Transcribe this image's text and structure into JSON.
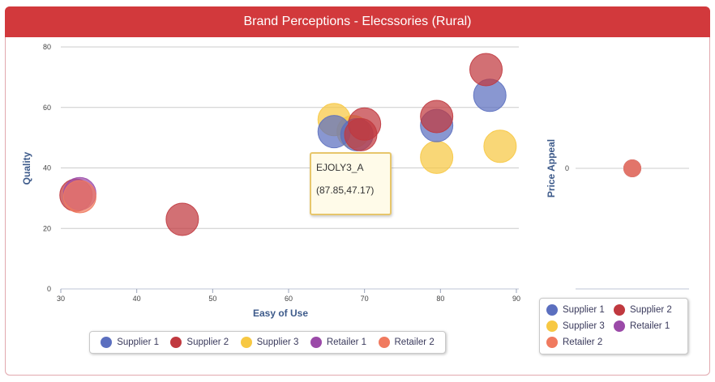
{
  "title": "Brand Perceptions - Elecssories (Rural)",
  "colors": {
    "header": "#d2393c",
    "supplier1": "#5b6fbf",
    "supplier2": "#c0393f",
    "supplier3": "#f7c843",
    "retailer1": "#9b4aa8",
    "retailer2": "#f07a5f"
  },
  "chart_data": [
    {
      "type": "scatter",
      "xlabel": "Easy of Use",
      "ylabel": "Quality",
      "xlim": [
        30,
        90
      ],
      "ylim": [
        0,
        80
      ],
      "xticks": [
        "30",
        "40",
        "50",
        "60",
        "70",
        "80",
        "90"
      ],
      "yticks": [
        "0",
        "20",
        "40",
        "60",
        "80"
      ],
      "grid": true,
      "legend_position": "bottom",
      "series": [
        {
          "name": "Supplier 1",
          "color": "#5b6fbf",
          "points": [
            [
              66,
              52
            ],
            [
              69,
              51
            ],
            [
              79.5,
              54
            ],
            [
              86.5,
              64
            ]
          ]
        },
        {
          "name": "Supplier 2",
          "color": "#c0393f",
          "points": [
            [
              32,
              31
            ],
            [
              46,
              23
            ],
            [
              69.5,
              51
            ],
            [
              70,
              54.5
            ],
            [
              79.5,
              57
            ],
            [
              86,
              72.5
            ]
          ]
        },
        {
          "name": "Supplier 3",
          "color": "#f7c843",
          "points": [
            [
              66,
              56
            ],
            [
              68.5,
              52
            ],
            [
              79.5,
              43.5
            ],
            [
              87.85,
              47.17
            ]
          ]
        },
        {
          "name": "Retailer 1",
          "color": "#9b4aa8",
          "points": [
            [
              32.5,
              31.5
            ]
          ]
        },
        {
          "name": "Retailer 2",
          "color": "#f07a5f",
          "points": [
            [
              32.5,
              30.5
            ]
          ]
        }
      ]
    },
    {
      "type": "scatter",
      "ylabel": "Price Appeal",
      "yticks": [
        "0"
      ],
      "legend_position": "bottom",
      "series": [
        {
          "name": "Supplier 1",
          "color": "#5b6fbf",
          "points": [
            [
              0,
              0
            ]
          ]
        },
        {
          "name": "Supplier 2",
          "color": "#c0393f",
          "points": [
            [
              0,
              0
            ]
          ]
        },
        {
          "name": "Supplier 3",
          "color": "#f7c843",
          "points": [
            [
              0,
              0
            ]
          ]
        },
        {
          "name": "Retailer 1",
          "color": "#9b4aa8",
          "points": [
            [
              0,
              0
            ]
          ]
        },
        {
          "name": "Retailer 2",
          "color": "#f07a5f",
          "points": [
            [
              0,
              0
            ]
          ]
        }
      ]
    }
  ],
  "tooltip": {
    "name": "EJOLY3_A",
    "value": "(87.85,47.17)"
  },
  "legend_main": [
    "Supplier 1",
    "Supplier 2",
    "Supplier 3",
    "Retailer 1",
    "Retailer 2"
  ],
  "legend_side": [
    "Supplier 1",
    "Supplier 2",
    "Supplier 3",
    "Retailer 1",
    "Retailer 2"
  ]
}
